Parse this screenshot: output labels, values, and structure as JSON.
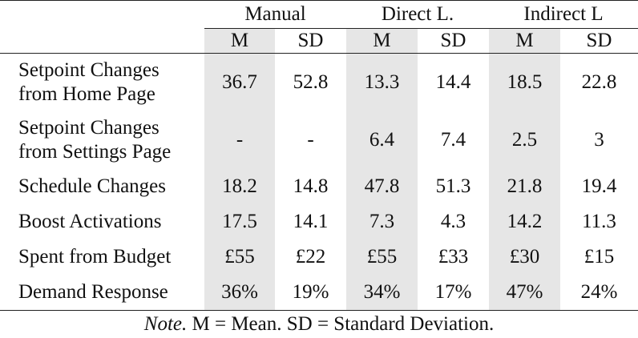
{
  "groups": [
    "Manual",
    "Direct L.",
    "Indirect L"
  ],
  "subheaders": [
    "M",
    "SD",
    "M",
    "SD",
    "M",
    "SD"
  ],
  "rows": [
    {
      "label_line1": "Setpoint Changes",
      "label_line2": "from Home Page",
      "values": [
        "36.7",
        "52.8",
        "13.3",
        "14.4",
        "18.5",
        "22.8"
      ]
    },
    {
      "label_line1": "Setpoint Changes",
      "label_line2": "from Settings Page",
      "values": [
        "-",
        "-",
        "6.4",
        "7.4",
        "2.5",
        "3"
      ]
    },
    {
      "label_line1": "Schedule Changes",
      "label_line2": "",
      "values": [
        "18.2",
        "14.8",
        "47.8",
        "51.3",
        "21.8",
        "19.4"
      ]
    },
    {
      "label_line1": "Boost Activations",
      "label_line2": "",
      "values": [
        "17.5",
        "14.1",
        "7.3",
        "4.3",
        "14.2",
        "11.3"
      ]
    },
    {
      "label_line1": "Spent from Budget",
      "label_line2": "",
      "values": [
        "£55",
        "£22",
        "£55",
        "£33",
        "£30",
        "£15"
      ]
    },
    {
      "label_line1": "Demand Response",
      "label_line2": "",
      "values": [
        "36%",
        "19%",
        "34%",
        "17%",
        "47%",
        "24%"
      ]
    }
  ],
  "note": {
    "prefix": "Note.",
    "text": " M = Mean.  SD = Standard Deviation."
  }
}
